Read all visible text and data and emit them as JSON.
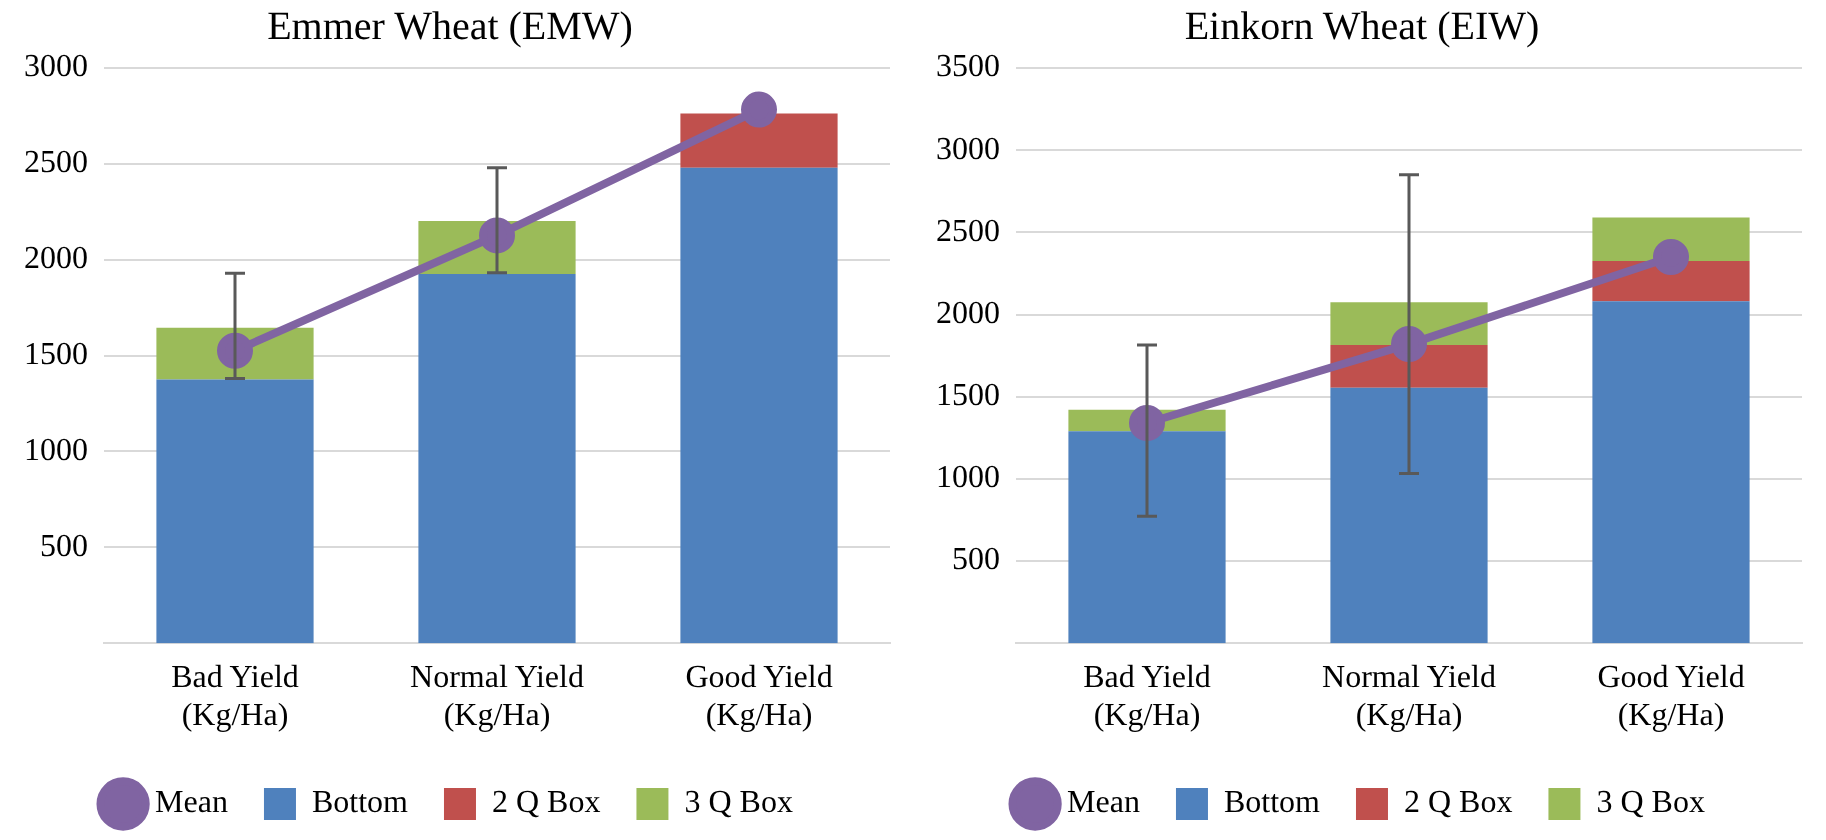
{
  "chart_data": [
    {
      "type": "bar",
      "title": "Emmer Wheat (EMW)",
      "categories": [
        "Bad Yield\n(Kg/Ha)",
        "Normal Yield\n(Kg/Ha)",
        "Good Yield\n(Kg/Ha)"
      ],
      "stacked": true,
      "ylim": [
        0,
        3000
      ],
      "yticks": [
        500,
        1000,
        1500,
        2000,
        2500,
        3000
      ],
      "grid": "y",
      "legend": "bottom",
      "marker": "circle",
      "series": [
        {
          "name": "Bottom",
          "color": "#4f81bd",
          "values": [
            1375,
            1925,
            2480
          ]
        },
        {
          "name": "2 Q Box",
          "color": "#c0504d",
          "values": [
            0,
            0,
            283
          ]
        },
        {
          "name": "3 Q Box",
          "color": "#9bbb59",
          "values": [
            270,
            277,
            0
          ]
        },
        {
          "name": "Mean",
          "type": "line",
          "color": "#8064a2",
          "values": [
            1525,
            2127,
            2783
          ],
          "errors": [
            [
              1380,
              1930
            ],
            [
              1932,
              2480
            ],
            null
          ]
        }
      ]
    },
    {
      "type": "bar",
      "title": "Einkorn Wheat (EIW)",
      "categories": [
        "Bad Yield\n(Kg/Ha)",
        "Normal Yield\n(Kg/Ha)",
        "Good Yield\n(Kg/Ha)"
      ],
      "stacked": true,
      "ylim": [
        0,
        3500
      ],
      "yticks": [
        500,
        1000,
        1500,
        2000,
        2500,
        3000,
        3500
      ],
      "grid": "y",
      "legend": "bottom",
      "marker": "circle",
      "series": [
        {
          "name": "Bottom",
          "color": "#4f81bd",
          "values": [
            1290,
            1555,
            2080
          ]
        },
        {
          "name": "2 Q Box",
          "color": "#c0504d",
          "values": [
            0,
            260,
            245
          ]
        },
        {
          "name": "3 Q Box",
          "color": "#9bbb59",
          "values": [
            130,
            260,
            265
          ]
        },
        {
          "name": "Mean",
          "type": "line",
          "color": "#8064a2",
          "values": [
            1340,
            1820,
            2350
          ],
          "errors": [
            [
              772,
              1814
            ],
            [
              1032,
              2851
            ],
            null
          ]
        }
      ]
    }
  ]
}
